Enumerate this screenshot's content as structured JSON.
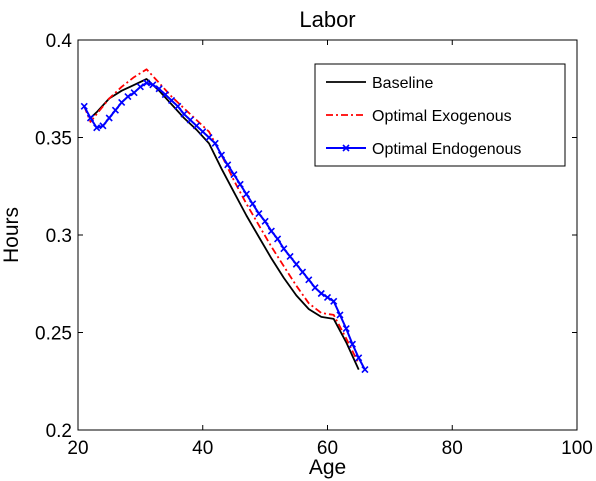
{
  "chart_data": {
    "type": "line",
    "title": "Labor",
    "xlabel": "Age",
    "ylabel": "Hours",
    "xlim": [
      20,
      100
    ],
    "ylim": [
      0.2,
      0.4
    ],
    "xticks": [
      "20",
      "40",
      "60",
      "80",
      "100"
    ],
    "yticks": [
      "0.2",
      "0.25",
      "0.3",
      "0.35",
      "0.4"
    ],
    "grid": false,
    "legend_position": "top-right",
    "series": [
      {
        "name": "Baseline",
        "color": "#000000",
        "style": "solid",
        "marker": "none",
        "x": [
          22,
          23,
          25,
          27,
          29,
          31,
          33,
          35,
          37,
          39,
          41,
          43,
          45,
          47,
          49,
          51,
          53,
          55,
          57,
          59,
          61,
          63,
          65
        ],
        "y": [
          0.36,
          0.363,
          0.37,
          0.374,
          0.377,
          0.38,
          0.374,
          0.367,
          0.36,
          0.354,
          0.347,
          0.334,
          0.322,
          0.31,
          0.299,
          0.288,
          0.278,
          0.269,
          0.262,
          0.258,
          0.257,
          0.245,
          0.231
        ]
      },
      {
        "name": "Optimal Exogenous",
        "color": "#ff0000",
        "style": "dashdot",
        "marker": "none",
        "x": [
          21,
          22,
          23,
          25,
          27,
          29,
          31,
          33,
          35,
          37,
          39,
          41,
          43,
          45,
          47,
          49,
          51,
          53,
          55,
          57,
          59,
          61,
          63,
          65
        ],
        "y": [
          0.366,
          0.358,
          0.362,
          0.37,
          0.376,
          0.381,
          0.385,
          0.378,
          0.371,
          0.365,
          0.359,
          0.353,
          0.341,
          0.328,
          0.316,
          0.305,
          0.294,
          0.284,
          0.274,
          0.265,
          0.26,
          0.259,
          0.247,
          0.234
        ]
      },
      {
        "name": "Optimal Endogenous",
        "color": "#0000ff",
        "style": "solid",
        "marker": "x",
        "x": [
          21,
          22,
          23,
          24,
          25,
          26,
          27,
          28,
          29,
          30,
          31,
          32,
          33,
          34,
          35,
          36,
          37,
          38,
          39,
          40,
          41,
          42,
          43,
          44,
          45,
          46,
          47,
          48,
          49,
          50,
          51,
          52,
          53,
          54,
          55,
          56,
          57,
          58,
          59,
          60,
          61,
          62,
          63,
          64,
          65,
          66
        ],
        "y": [
          0.366,
          0.36,
          0.355,
          0.356,
          0.36,
          0.364,
          0.368,
          0.371,
          0.373,
          0.376,
          0.378,
          0.377,
          0.375,
          0.372,
          0.369,
          0.366,
          0.362,
          0.359,
          0.356,
          0.353,
          0.35,
          0.347,
          0.341,
          0.336,
          0.331,
          0.326,
          0.321,
          0.316,
          0.311,
          0.307,
          0.302,
          0.298,
          0.293,
          0.289,
          0.285,
          0.281,
          0.277,
          0.273,
          0.27,
          0.268,
          0.266,
          0.259,
          0.252,
          0.244,
          0.237,
          0.231
        ]
      }
    ]
  }
}
